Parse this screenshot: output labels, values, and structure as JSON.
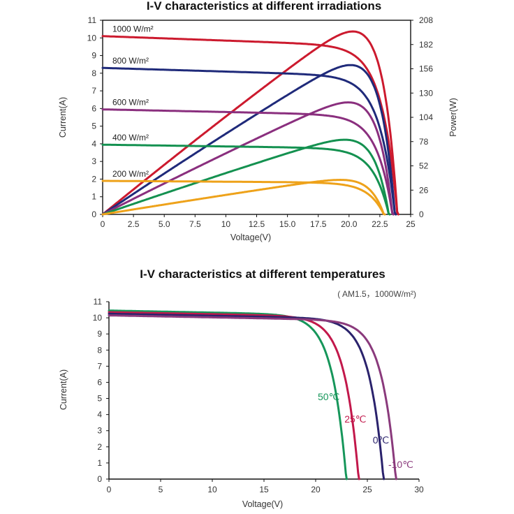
{
  "chart_data": [
    {
      "type": "line",
      "title": "I-V characteristics at different irradiations",
      "xlabel": "Voltage(V)",
      "ylabel": "Current(A)",
      "y2label": "Power(W)",
      "xlim": [
        0,
        25
      ],
      "ylim": [
        0,
        11
      ],
      "y2lim": [
        0,
        208
      ],
      "xticks": [
        "0",
        "2.5",
        "5.0",
        "7.5",
        "10",
        "12.5",
        "15.0",
        "17.5",
        "20.0",
        "22.5",
        "25"
      ],
      "yticks": [
        "0",
        "1",
        "2",
        "3",
        "4",
        "5",
        "6",
        "7",
        "8",
        "9",
        "10",
        "11"
      ],
      "y2ticks": [
        "0",
        "26",
        "52",
        "78",
        "104",
        "130",
        "156",
        "182",
        "208"
      ],
      "grid": false,
      "series": [
        {
          "name": "1000 W/m²",
          "color": "#cc1a2e",
          "isc": 10.1,
          "voc": 24.0,
          "knee": 19.8,
          "pmax": 196
        },
        {
          "name": "800 W/m²",
          "color": "#1f2a7a",
          "isc": 8.3,
          "voc": 23.8,
          "knee": 19.8,
          "pmax": 160
        },
        {
          "name": "600 W/m²",
          "color": "#8a2f7e",
          "isc": 5.95,
          "voc": 23.6,
          "knee": 19.8,
          "pmax": 120
        },
        {
          "name": "400 W/m²",
          "color": "#149150",
          "isc": 3.95,
          "voc": 23.3,
          "knee": 19.8,
          "pmax": 80
        },
        {
          "name": "200 W/m²",
          "color": "#eea21a",
          "isc": 1.9,
          "voc": 22.9,
          "knee": 19.8,
          "pmax": 37
        }
      ]
    },
    {
      "type": "line",
      "title": "I-V characteristics at different temperatures",
      "subtitle": "( AM1.5，1000W/m²)",
      "xlabel": "Voltage(V)",
      "ylabel": "Current(A)",
      "xlim": [
        0,
        30
      ],
      "ylim": [
        0,
        11
      ],
      "xticks": [
        "0",
        "5",
        "10",
        "15",
        "20",
        "25",
        "30"
      ],
      "yticks": [
        "0",
        "1",
        "2",
        "3",
        "4",
        "5",
        "6",
        "7",
        "8",
        "9",
        "10",
        "11"
      ],
      "grid": false,
      "series": [
        {
          "name": "50℃",
          "color": "#16965a",
          "isc": 10.45,
          "voc": 23.0
        },
        {
          "name": "25℃",
          "color": "#c2184b",
          "isc": 10.35,
          "voc": 24.2
        },
        {
          "name": "0℃",
          "color": "#2a226c",
          "isc": 10.25,
          "voc": 26.6
        },
        {
          "name": "-10℃",
          "color": "#8a3a7c",
          "isc": 10.15,
          "voc": 27.8
        }
      ]
    }
  ]
}
